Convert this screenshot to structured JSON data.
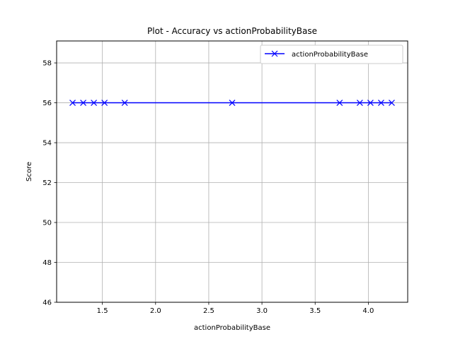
{
  "chart_data": {
    "type": "line",
    "title": "Plot - Accuracy vs actionProbabilityBase",
    "xlabel": "actionProbabilityBase",
    "ylabel": "Score",
    "xlim": [
      1.07,
      4.37
    ],
    "ylim": [
      46,
      59.1
    ],
    "xticks": [
      1.5,
      2.0,
      2.5,
      3.0,
      3.5,
      4.0
    ],
    "xtick_labels": [
      "1.5",
      "2.0",
      "2.5",
      "3.0",
      "3.5",
      "4.0"
    ],
    "yticks": [
      46,
      48,
      50,
      52,
      54,
      56,
      58
    ],
    "ytick_labels": [
      "46",
      "48",
      "50",
      "52",
      "54",
      "56",
      "58"
    ],
    "grid": true,
    "legend": {
      "position": "top-right",
      "entries": [
        "actionProbabilityBase"
      ]
    },
    "series": [
      {
        "name": "actionProbabilityBase",
        "color": "#0000ff",
        "marker": "x",
        "x": [
          1.22,
          1.32,
          1.42,
          1.52,
          1.71,
          2.72,
          3.73,
          3.92,
          4.02,
          4.12,
          4.22
        ],
        "y": [
          56,
          56,
          56,
          56,
          56,
          56,
          56,
          56,
          56,
          56,
          56
        ]
      }
    ]
  }
}
